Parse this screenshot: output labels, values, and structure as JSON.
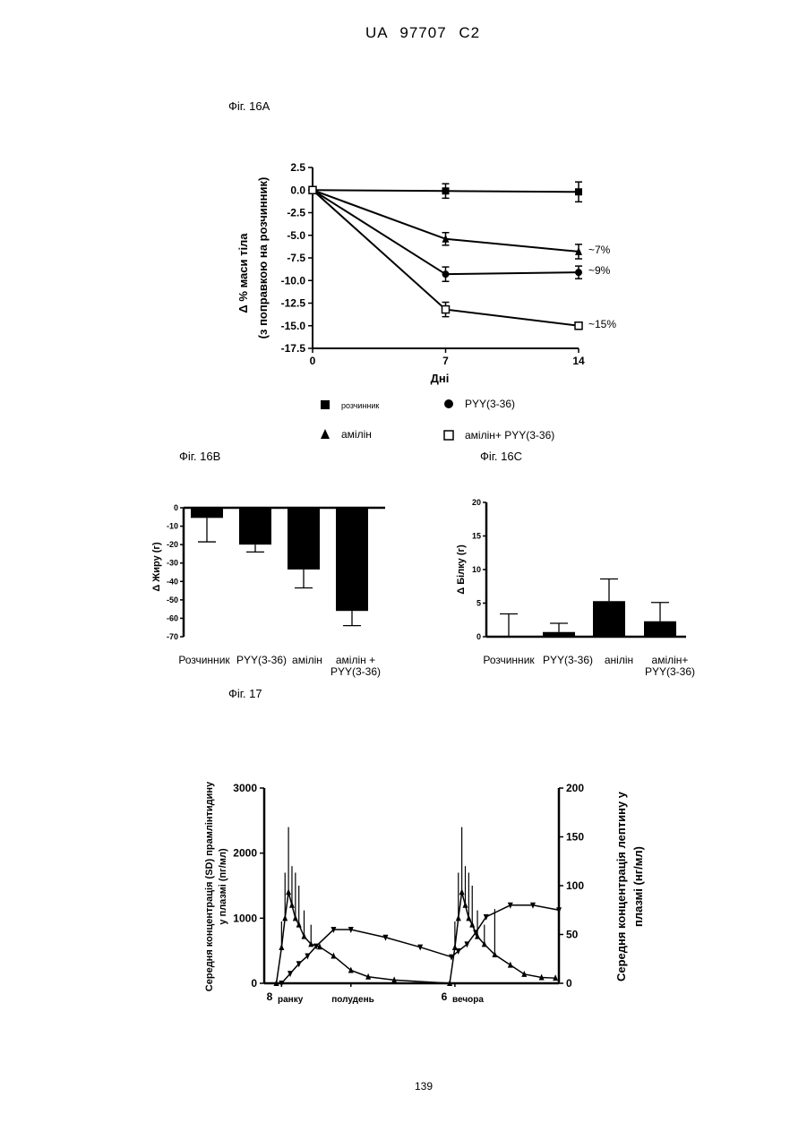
{
  "page": {
    "header": "UA 97707 C2",
    "page_number": "139",
    "fig16a_label": "Фіг. 16A",
    "fig16b_label": "Фіг. 16B",
    "fig16c_label": "Фіг. 16C",
    "fig17_label": "Фіг. 17"
  },
  "chart_data": [
    {
      "id": "fig16a",
      "type": "line",
      "title": "",
      "xlabel": "Дні",
      "ylabel": "Δ %  маси тіла",
      "ylabel2": "(з поправкою на розчинник)",
      "x": [
        0,
        7,
        14
      ],
      "x_ticks": [
        "0",
        "7",
        "14"
      ],
      "xlim": [
        0,
        14
      ],
      "ylim": [
        -17.5,
        2.5
      ],
      "y_ticks": [
        "2.5",
        "0.0",
        "-2.5",
        "-5.0",
        "-7.5",
        "-10.0",
        "-12.5",
        "-15.0",
        "-17.5"
      ],
      "series": [
        {
          "name": "розчинник",
          "marker": "square-filled",
          "values": [
            0.0,
            -0.1,
            -0.2
          ],
          "err": [
            0,
            0.8,
            1.1
          ]
        },
        {
          "name": "PYY(3-36)",
          "marker": "circle-filled",
          "values": [
            0.0,
            -9.3,
            -9.1
          ],
          "err": [
            0,
            0.8,
            0.7
          ]
        },
        {
          "name": "амілін",
          "marker": "triangle-filled",
          "values": [
            0.0,
            -5.4,
            -6.8
          ],
          "err": [
            0,
            0.7,
            0.8
          ]
        },
        {
          "name": "амілін+ PYY(3-36)",
          "marker": "square-open",
          "values": [
            0.0,
            -13.2,
            -15.0
          ],
          "err": [
            0,
            0.8,
            0.4
          ]
        }
      ],
      "annotations": [
        "~7%",
        "~9%",
        "~15%"
      ],
      "legend_placement": "bottom"
    },
    {
      "id": "fig16b",
      "type": "bar",
      "ylabel": "Δ Жиру (г)",
      "ylim": [
        -70,
        0
      ],
      "y_ticks": [
        "0",
        "-10",
        "-20",
        "-30",
        "-40",
        "-50",
        "-60",
        "-70"
      ],
      "categories": [
        [
          "Розчинник"
        ],
        [
          "PYY(3-36)"
        ],
        [
          "амілін"
        ],
        [
          "амілін +",
          "PYY(3-36)"
        ]
      ],
      "values": [
        -5.5,
        -20,
        -33.5,
        -56
      ],
      "err": [
        13,
        4,
        10,
        8
      ]
    },
    {
      "id": "fig16c",
      "type": "bar",
      "ylabel": "Δ Білку (г)",
      "ylim": [
        0,
        20
      ],
      "y_ticks": [
        "0",
        "5",
        "10",
        "15",
        "20"
      ],
      "categories": [
        [
          "Розчинник"
        ],
        [
          "PYY(3-36)"
        ],
        [
          "анілін"
        ],
        [
          "амілін+",
          "PYY(3-36)"
        ]
      ],
      "values": [
        0.1,
        0.7,
        5.3,
        2.3
      ],
      "err": [
        3.3,
        1.3,
        3.3,
        2.8
      ]
    },
    {
      "id": "fig17",
      "type": "line",
      "ylabel_left": "Середня концентрація (SD) прамлінтидину у плазмі (пг/мл)",
      "ylabel_left_1": "Середня концентрація (SD) прамлінтидину",
      "ylabel_left_2": "у плазмі (пг/мл)",
      "ylabel_right_1": "Середня концентрація лептину у",
      "ylabel_right_2": "плазмі  (нг/мл)",
      "ylim_left": [
        0,
        3000
      ],
      "ylim_right": [
        0,
        200
      ],
      "y_ticks_left": [
        "0",
        "1000",
        "2000",
        "3000"
      ],
      "y_ticks_right": [
        "0",
        "50",
        "100",
        "150",
        "200"
      ],
      "x_ticks": [
        [
          "8",
          "ранку"
        ],
        [
          "",
          "полудень"
        ],
        [
          "6",
          "вечора"
        ]
      ],
      "xlim_hours": [
        7,
        24
      ],
      "series": [
        {
          "name": "pramlintide",
          "marker": "triangle-up",
          "axis": "left",
          "x": [
            7.7,
            8.0,
            8.2,
            8.4,
            8.6,
            8.8,
            9.0,
            9.3,
            9.7,
            10.2,
            11,
            12,
            13,
            14.5,
            17.7,
            18.0,
            18.2,
            18.4,
            18.6,
            18.8,
            19.0,
            19.3,
            19.7,
            20.3,
            21.2,
            22,
            23,
            23.8
          ],
          "y": [
            0,
            550,
            1000,
            1400,
            1200,
            1000,
            900,
            720,
            600,
            560,
            420,
            200,
            100,
            50,
            0,
            550,
            1000,
            1400,
            1200,
            1000,
            900,
            720,
            600,
            440,
            280,
            140,
            90,
            80
          ],
          "err": [
            0,
            400,
            700,
            1000,
            600,
            700,
            600,
            400,
            300,
            0,
            0,
            0,
            0,
            0,
            0,
            400,
            700,
            1000,
            600,
            700,
            600,
            400,
            300,
            700,
            0,
            0,
            0,
            0
          ]
        },
        {
          "name": "leptin",
          "marker": "triangle-down",
          "axis": "right",
          "x": [
            8.0,
            8.5,
            9.0,
            9.5,
            10.0,
            11.0,
            12.0,
            14.0,
            16.0,
            17.8,
            18.2,
            18.7,
            19.2,
            19.8,
            21.2,
            22.5,
            24.0
          ],
          "y": [
            0,
            10,
            20,
            28,
            38,
            55,
            55,
            47,
            37,
            27,
            33,
            40,
            52,
            68,
            80,
            80,
            75
          ]
        }
      ]
    }
  ]
}
